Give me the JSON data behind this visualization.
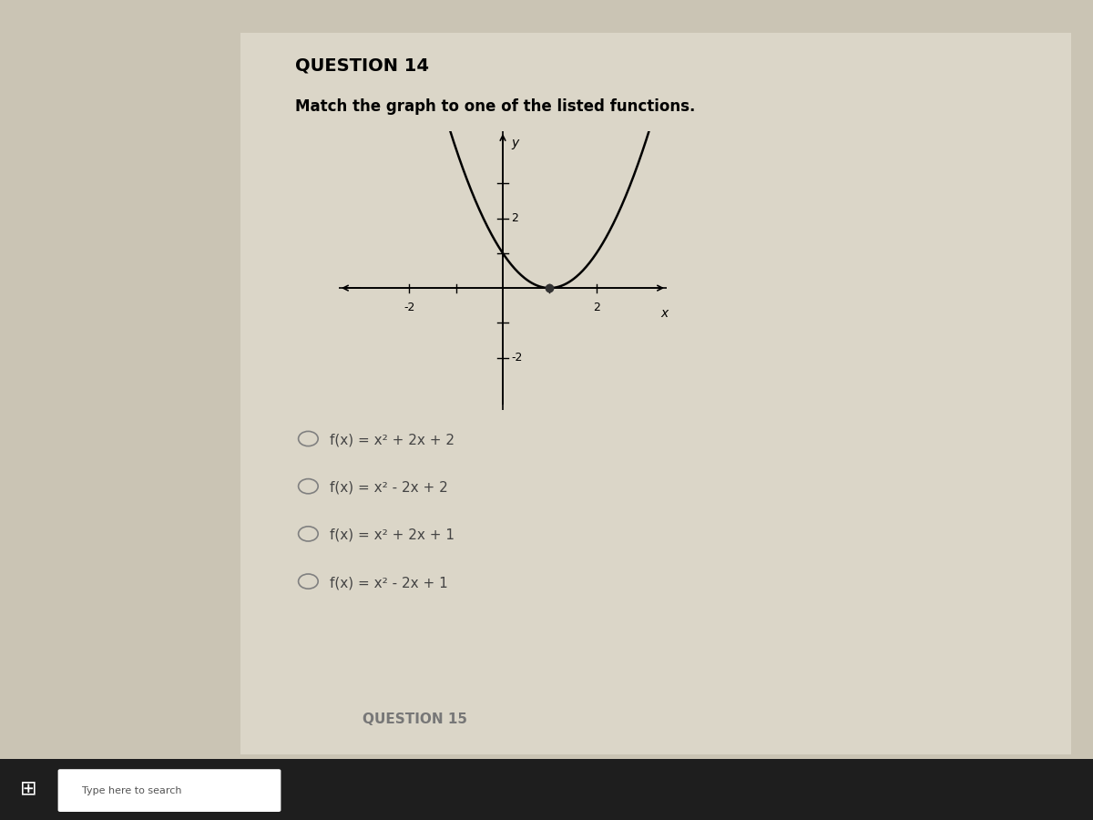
{
  "question_title": "QUESTION 14",
  "question_text": "Match the graph to one of the listed functions.",
  "vertex_x": 1,
  "vertex_y": 0,
  "xmin": -3.5,
  "xmax": 3.5,
  "ymin": -3.5,
  "ymax": 4.5,
  "axis_label_x": "x",
  "axis_label_y": "y",
  "curve_color": "#000000",
  "dot_color": "#333333",
  "options": [
    "f(x) = x² + 2x + 2",
    "f(x) = x² - 2x + 2",
    "f(x) = x² + 2x + 1",
    "f(x) = x² - 2x + 1"
  ],
  "next_question": "QUESTION 15",
  "bg_color": "#cac4b4",
  "panel_color": "#dbd6c8",
  "title_fontsize": 14,
  "option_fontsize": 11,
  "fig_width": 12,
  "fig_height": 9
}
